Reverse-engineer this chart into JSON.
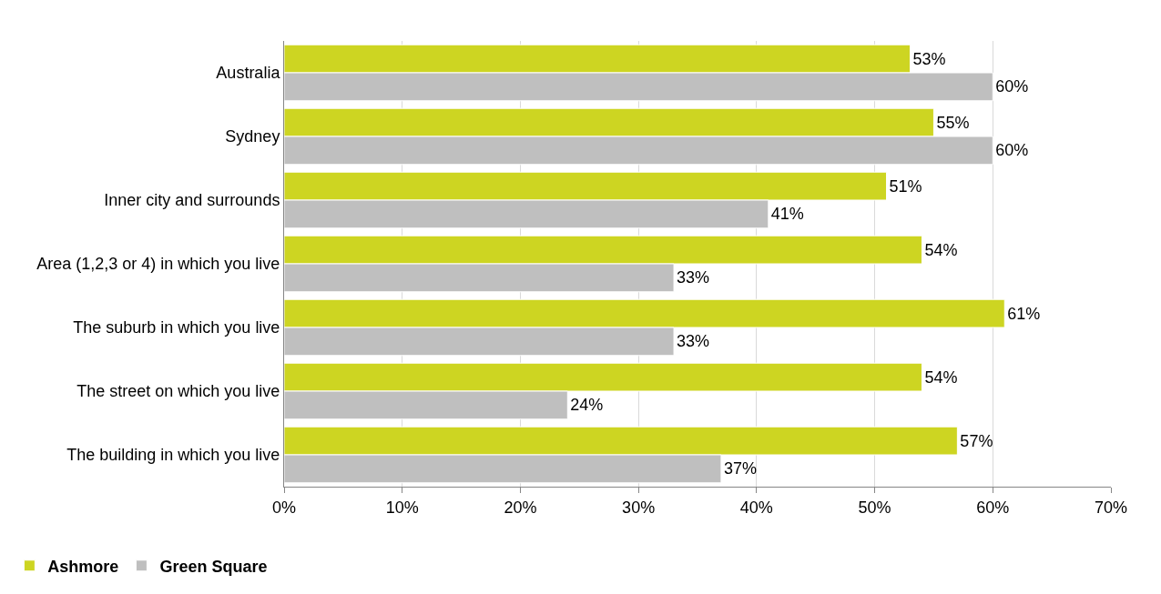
{
  "chart_data": {
    "type": "bar",
    "orientation": "horizontal",
    "categories": [
      "Australia",
      "Sydney",
      "Inner city and surrounds",
      "Area (1,2,3 or 4) in which you live",
      "The suburb in which you live",
      "The street on which you live",
      "The building in which you live"
    ],
    "series": [
      {
        "name": "Ashmore",
        "color": "#cdd522",
        "values": [
          53,
          55,
          51,
          54,
          61,
          54,
          57
        ],
        "value_labels": [
          "53%",
          "55%",
          "51%",
          "54%",
          "61%",
          "54%",
          "57%"
        ]
      },
      {
        "name": "Green Square",
        "color": "#bfbfbf",
        "values": [
          60,
          60,
          41,
          33,
          33,
          24,
          37
        ],
        "value_labels": [
          "60%",
          "60%",
          "41%",
          "33%",
          "33%",
          "24%",
          "37%"
        ]
      }
    ],
    "xlim": [
      0,
      70
    ],
    "xticks": [
      {
        "value": 0,
        "label": "0%"
      },
      {
        "value": 10,
        "label": "10%"
      },
      {
        "value": 20,
        "label": "20%"
      },
      {
        "value": 30,
        "label": "30%"
      },
      {
        "value": 40,
        "label": "40%"
      },
      {
        "value": 50,
        "label": "50%"
      },
      {
        "value": 60,
        "label": "60%"
      },
      {
        "value": 70,
        "label": "70%"
      }
    ],
    "grid": "x",
    "legend": "bottom left"
  }
}
